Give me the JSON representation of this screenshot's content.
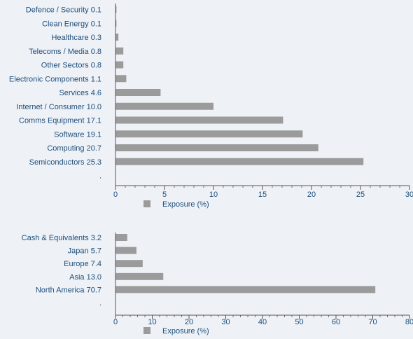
{
  "colors": {
    "background": "#eef1f6",
    "bar": "#9b9b9b",
    "label_text": "#1d4f7c",
    "axis": "#555555"
  },
  "chart_data": [
    {
      "type": "bar",
      "orientation": "horizontal",
      "categories": [
        "Defence / Security 0.1",
        "Clean Energy 0.1",
        "Healthcare 0.3",
        "Telecoms / Media 0.8",
        "Other Sectors 0.8",
        "Electronic Components 1.1",
        "Services 4.6",
        "Internet / Consumer 10.0",
        "Comms Equipment 17.1",
        "Software 19.1",
        "Computing 20.7",
        "Semiconductors 25.3",
        "."
      ],
      "series": [
        {
          "name": "Exposure (%)",
          "values": [
            0.1,
            0.1,
            0.3,
            0.8,
            0.8,
            1.1,
            4.6,
            10.0,
            17.1,
            19.1,
            20.7,
            25.3,
            0
          ]
        }
      ],
      "xlim": [
        0,
        30
      ],
      "xticks": [
        "0",
        "5",
        "10",
        "15",
        "20",
        "25",
        "30"
      ],
      "grid": false,
      "legend": "bottom"
    },
    {
      "type": "bar",
      "orientation": "horizontal",
      "categories": [
        "Cash & Equivalents 3.2",
        "Japan 5.7",
        "Europe 7.4",
        "Asia 13.0",
        "North America 70.7",
        "."
      ],
      "series": [
        {
          "name": "Exposure (%)",
          "values": [
            3.2,
            5.7,
            7.4,
            13.0,
            70.7,
            0
          ]
        }
      ],
      "xlim": [
        0,
        80
      ],
      "xticks": [
        "0",
        "10",
        "20",
        "30",
        "40",
        "50",
        "60",
        "70",
        "80"
      ],
      "grid": false,
      "legend": "bottom"
    }
  ]
}
